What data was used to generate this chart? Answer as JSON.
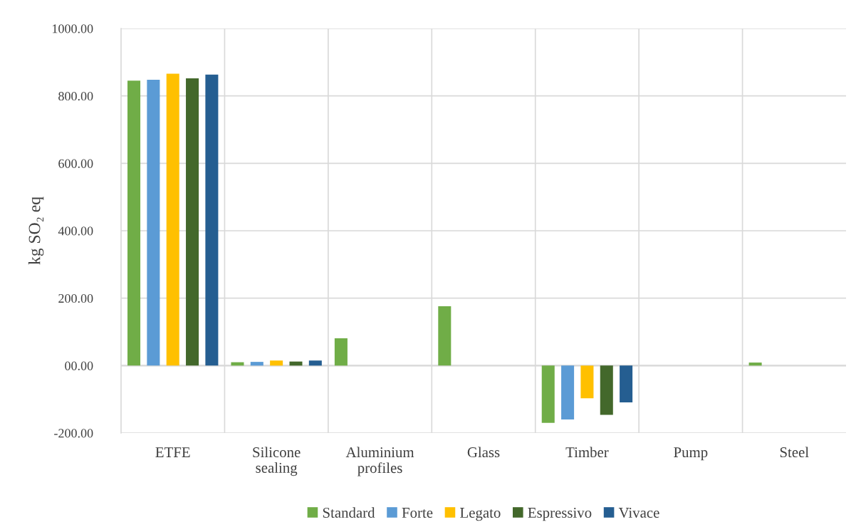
{
  "chart_data": {
    "type": "bar",
    "ylabel": "kg SO₂ eq",
    "categories": [
      "ETFE",
      "Silicone\nsealing",
      "Aluminium\nprofiles",
      "Glass",
      "Timber",
      "Pump",
      "Steel"
    ],
    "series": [
      {
        "name": "Standard",
        "color": "#70ad47",
        "values": [
          845,
          10,
          81,
          176,
          -170,
          null,
          9
        ]
      },
      {
        "name": "Forte",
        "color": "#5b9bd5",
        "values": [
          848,
          11,
          null,
          null,
          -160,
          null,
          null
        ]
      },
      {
        "name": "Legato",
        "color": "#ffc000",
        "values": [
          866,
          15,
          null,
          null,
          -97,
          null,
          null
        ]
      },
      {
        "name": "Espressivo",
        "color": "#43682b",
        "values": [
          852,
          12,
          null,
          null,
          -146,
          null,
          null
        ]
      },
      {
        "name": "Vivace",
        "color": "#255e91",
        "values": [
          863,
          15,
          null,
          null,
          -109,
          null,
          null
        ]
      }
    ],
    "ylim": [
      -200,
      1000
    ],
    "yticks": [
      {
        "value": -200,
        "label": "-200.00"
      },
      {
        "value": 0,
        "label": "00.00"
      },
      {
        "value": 200,
        "label": "200.00"
      },
      {
        "value": 400,
        "label": "400.00"
      },
      {
        "value": 600,
        "label": "600.00"
      },
      {
        "value": 800,
        "label": "800.00"
      },
      {
        "value": 1000,
        "label": "1000.00"
      }
    ],
    "grid": true,
    "legend": "bottom"
  }
}
